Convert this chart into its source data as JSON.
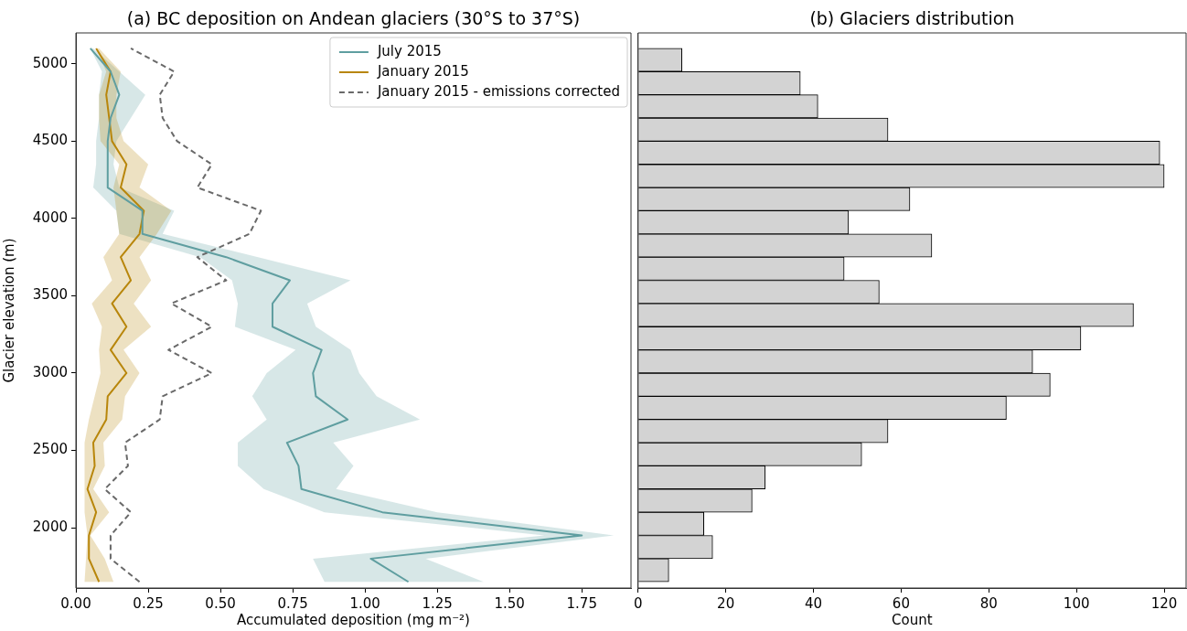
{
  "chart_data": [
    {
      "type": "line",
      "orientation": "horizontal",
      "title": "(a) BC deposition on Andean glaciers (30°S to 37°S)",
      "xlabel": "Accumulated deposition (mg m⁻²)",
      "ylabel": "Glacier elevation (m)",
      "legend": "top right",
      "xlim": [
        0,
        1.92
      ],
      "xticks": [
        {
          "value": 0,
          "label": "0.00"
        },
        {
          "value": 0.25,
          "label": "0.25"
        },
        {
          "value": 0.5,
          "label": "0.50"
        },
        {
          "value": 0.75,
          "label": "0.75"
        },
        {
          "value": 1,
          "label": "1.00"
        },
        {
          "value": 1.25,
          "label": "1.25"
        },
        {
          "value": 1.5,
          "label": "1.50"
        },
        {
          "value": 1.75,
          "label": "1.75"
        }
      ],
      "ylim": [
        1610,
        5200
      ],
      "yticks": [
        2000,
        2500,
        3000,
        3500,
        4000,
        4500,
        5000
      ],
      "x": [
        1650,
        1800,
        1950,
        2100,
        2250,
        2400,
        2550,
        2700,
        2850,
        3000,
        3150,
        3300,
        3450,
        3600,
        3750,
        3900,
        4050,
        4200,
        4350,
        4500,
        4650,
        4800,
        4950,
        5100
      ],
      "series": [
        {
          "name": "July 2015",
          "color": "#5f9ea0",
          "values": [
            1.15,
            1.02,
            1.75,
            1.06,
            0.78,
            0.77,
            0.73,
            0.94,
            0.83,
            0.82,
            0.85,
            0.68,
            0.68,
            0.74,
            0.52,
            0.23,
            0.23,
            0.11,
            0.11,
            0.11,
            0.12,
            0.15,
            0.12,
            0.05
          ],
          "lower": [
            0.86,
            0.82,
            1.62,
            0.86,
            0.65,
            0.56,
            0.56,
            0.66,
            0.61,
            0.66,
            0.76,
            0.55,
            0.56,
            0.54,
            0.43,
            0.15,
            0.14,
            0.06,
            0.07,
            0.07,
            0.08,
            0.08,
            0.09,
            0.05
          ],
          "upper": [
            1.41,
            1.21,
            1.86,
            1.25,
            0.9,
            0.96,
            0.89,
            1.19,
            1.04,
            0.98,
            0.95,
            0.83,
            0.8,
            0.95,
            0.63,
            0.3,
            0.34,
            0.15,
            0.13,
            0.14,
            0.19,
            0.24,
            0.15,
            0.06
          ]
        },
        {
          "name": "January 2015",
          "color": "#b8860b",
          "values": [
            0.08,
            0.045,
            0.045,
            0.07,
            0.04,
            0.065,
            0.06,
            0.105,
            0.11,
            0.175,
            0.12,
            0.175,
            0.125,
            0.19,
            0.155,
            0.22,
            0.235,
            0.155,
            0.175,
            0.125,
            0.115,
            0.105,
            0.12,
            0.07
          ],
          "lower": [
            0.03,
            0.035,
            0.04,
            0.03,
            0.03,
            0.03,
            0.03,
            0.045,
            0.065,
            0.085,
            0.08,
            0.09,
            0.055,
            0.125,
            0.095,
            0.15,
            0.14,
            0.13,
            0.15,
            0.085,
            0.08,
            0.08,
            0.105,
            0.07
          ],
          "upper": [
            0.13,
            0.1,
            0.05,
            0.115,
            0.06,
            0.1,
            0.095,
            0.16,
            0.17,
            0.22,
            0.165,
            0.26,
            0.2,
            0.26,
            0.22,
            0.28,
            0.33,
            0.22,
            0.25,
            0.165,
            0.14,
            0.14,
            0.155,
            0.08
          ]
        },
        {
          "name": "January 2015 - emissions corrected",
          "color": "#696969",
          "line_style": "dashed",
          "values": [
            0.22,
            0.12,
            0.12,
            0.19,
            0.1,
            0.18,
            0.17,
            0.29,
            0.3,
            0.47,
            0.32,
            0.47,
            0.33,
            0.52,
            0.42,
            0.6,
            0.64,
            0.42,
            0.47,
            0.35,
            0.3,
            0.29,
            0.34,
            0.19
          ]
        }
      ]
    },
    {
      "type": "histogram",
      "orientation": "horizontal",
      "title": "(b) Glaciers distribution",
      "xlabel": "Count",
      "color": "#d3d3d3",
      "tick_labels": "x",
      "bins": [
        1650,
        1800,
        1950,
        2100,
        2250,
        2400,
        2550,
        2700,
        2850,
        3000,
        3150,
        3300,
        3450,
        3600,
        3750,
        3900,
        4050,
        4200,
        4350,
        4500,
        4650,
        4800,
        4950,
        5100
      ],
      "values": [
        7,
        17,
        15,
        26,
        29,
        51,
        57,
        84,
        94,
        90,
        101,
        113,
        55,
        47,
        67,
        48,
        62,
        120,
        119,
        57,
        41,
        37,
        10
      ],
      "xlim": [
        0,
        125
      ],
      "xticks": [
        0,
        20,
        40,
        60,
        80,
        100,
        120
      ],
      "ylim": [
        1610,
        5200
      ]
    }
  ]
}
